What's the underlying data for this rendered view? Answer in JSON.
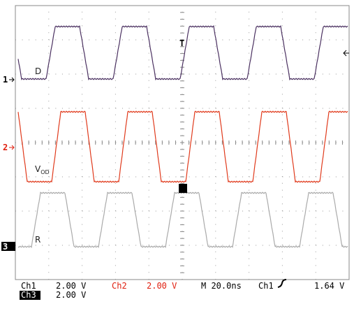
{
  "traces": [
    {
      "label": "D",
      "marker": "1"
    },
    {
      "label": "V",
      "label_sub": "OD",
      "marker": "2"
    },
    {
      "label": "R",
      "marker": "3"
    }
  ],
  "trigger": "T",
  "status": {
    "ch1": "Ch1",
    "ch1_scale": "2.00 V",
    "ch2": "Ch2",
    "ch2_scale": "2.00 V",
    "timebase": "M 20.0ns",
    "trig_source": "Ch1",
    "trig_level": "1.64 V",
    "ch3": "Ch3",
    "ch3_scale": "2.00 V"
  }
}
